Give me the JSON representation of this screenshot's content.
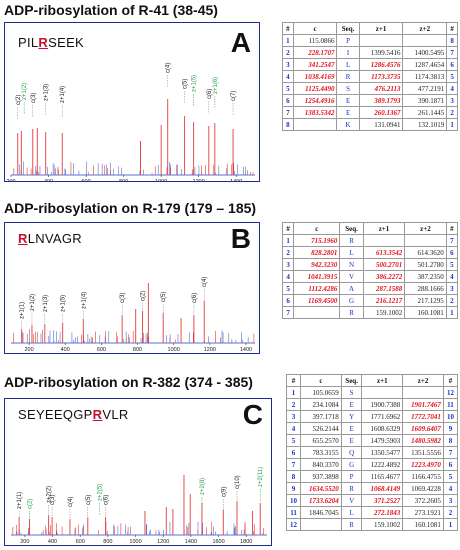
{
  "panels": [
    {
      "id": "A",
      "title": "ADP-ribosylation of R-41 (38-45)",
      "letter": "A",
      "peptide": {
        "pre": "PIL",
        "mod": "R",
        "post": "SEEK"
      },
      "x_ticks": [
        "200",
        "400",
        "600",
        "800",
        "1000",
        "1200",
        "1400"
      ],
      "xlim": [
        200,
        1500
      ],
      "peak_labels": [
        "c(2)",
        "z+1(2)",
        "c(3)",
        "z+1(3)",
        "z+1(4)",
        "c(4)",
        "c(5)",
        "z+1(5)",
        "c(6)",
        "z+1(6)",
        "c(7)"
      ],
      "table": {
        "headers": [
          "#",
          "c",
          "Seq.",
          "z+1",
          "z+2",
          "#"
        ],
        "rows": [
          {
            "n": "1",
            "c": "115.0866",
            "aa": "P",
            "z1": "",
            "z2": "",
            "m": "8",
            "hc": false,
            "hz1": false,
            "hz2": false
          },
          {
            "n": "2",
            "c": "228.1707",
            "aa": "I",
            "z1": "1399.5416",
            "z2": "1400.5495",
            "m": "7",
            "hc": true,
            "hz1": false,
            "hz2": false
          },
          {
            "n": "3",
            "c": "341.2547",
            "aa": "L",
            "z1": "1286.4576",
            "z2": "1287.4654",
            "m": "6",
            "hc": true,
            "hz1": true,
            "hz2": false
          },
          {
            "n": "4",
            "c": "1038.4169",
            "aa": "R",
            "z1": "1173.3735",
            "z2": "1174.3813",
            "m": "5",
            "hc": true,
            "hz1": true,
            "hz2": false
          },
          {
            "n": "5",
            "c": "1125.4490",
            "aa": "S",
            "z1": "476.2113",
            "z2": "477.2191",
            "m": "4",
            "hc": true,
            "hz1": true,
            "hz2": false
          },
          {
            "n": "6",
            "c": "1254.4916",
            "aa": "E",
            "z1": "389.1793",
            "z2": "390.1871",
            "m": "3",
            "hc": true,
            "hz1": true,
            "hz2": false
          },
          {
            "n": "7",
            "c": "1383.5342",
            "aa": "E",
            "z1": "260.1367",
            "z2": "261.1445",
            "m": "2",
            "hc": true,
            "hz1": true,
            "hz2": false
          },
          {
            "n": "8",
            "c": "",
            "aa": "K",
            "z1": "131.0941",
            "z2": "132.1019",
            "m": "1",
            "hc": false,
            "hz1": false,
            "hz2": false
          }
        ]
      }
    },
    {
      "id": "B",
      "title": "ADP-ribosylation on R-179 (179 – 185)",
      "letter": "B",
      "peptide": {
        "pre": "",
        "mod": "R",
        "post": "LNVAGR"
      },
      "x_ticks": [
        "200",
        "400",
        "600",
        "800",
        "1000",
        "1200",
        "1400"
      ],
      "xlim": [
        100,
        1450
      ],
      "peak_labels": [
        "z+1(1)",
        "z+1(2)",
        "z+1(3)",
        "z+1(5)",
        "z+1(4)",
        "c(3)",
        "c(2)",
        "c(5)",
        "c(6)",
        "c(4)"
      ],
      "table": {
        "headers": [
          "#",
          "c",
          "Seq.",
          "z+1",
          "z+2",
          "#"
        ],
        "rows": [
          {
            "n": "1",
            "c": "715.1960",
            "aa": "R",
            "z1": "",
            "z2": "",
            "m": "7",
            "hc": true,
            "hz1": false,
            "hz2": false
          },
          {
            "n": "2",
            "c": "828.2801",
            "aa": "L",
            "z1": "613.3542",
            "z2": "614.3620",
            "m": "6",
            "hc": true,
            "hz1": true,
            "hz2": false
          },
          {
            "n": "3",
            "c": "942.3230",
            "aa": "N",
            "z1": "500.2701",
            "z2": "501.2780",
            "m": "5",
            "hc": true,
            "hz1": true,
            "hz2": false
          },
          {
            "n": "4",
            "c": "1041.3915",
            "aa": "V",
            "z1": "386.2272",
            "z2": "387.2350",
            "m": "4",
            "hc": true,
            "hz1": true,
            "hz2": false
          },
          {
            "n": "5",
            "c": "1112.4286",
            "aa": "A",
            "z1": "287.1588",
            "z2": "288.1666",
            "m": "3",
            "hc": true,
            "hz1": true,
            "hz2": false
          },
          {
            "n": "6",
            "c": "1169.4500",
            "aa": "G",
            "z1": "216.1217",
            "z2": "217.1295",
            "m": "2",
            "hc": true,
            "hz1": true,
            "hz2": false
          },
          {
            "n": "7",
            "c": "",
            "aa": "R",
            "z1": "159.1002",
            "z2": "160.1081",
            "m": "1",
            "hc": false,
            "hz1": false,
            "hz2": false
          }
        ]
      }
    },
    {
      "id": "C",
      "title": "ADP-ribosylation on R-382 (374 - 385)",
      "letter": "C",
      "peptide": {
        "pre": "SEYEEQGP",
        "mod": "R",
        "post": "VLR"
      },
      "x_ticks": [
        "200",
        "400",
        "600",
        "800",
        "1000",
        "1200",
        "1400",
        "1600",
        "1800"
      ],
      "xlim": [
        100,
        1950
      ],
      "peak_labels": [
        "z+1(1)",
        "z+2(2)",
        "c(2)",
        "z+2(5)",
        "c(3)",
        "c(4)",
        "c(5)",
        "c(6)",
        "z+2(8)",
        "c(9)",
        "c(10)",
        "z+2(11)"
      ],
      "table": {
        "headers": [
          "#",
          "c",
          "Seq.",
          "z+1",
          "z+2",
          "#"
        ],
        "rows": [
          {
            "n": "1",
            "c": "105.0659",
            "aa": "S",
            "z1": "",
            "z2": "",
            "m": "12",
            "hc": false,
            "hz1": false,
            "hz2": false
          },
          {
            "n": "2",
            "c": "234.1084",
            "aa": "E",
            "z1": "1900.7388",
            "z2": "1901.7467",
            "m": "11",
            "hc": false,
            "hz1": false,
            "hz2": true
          },
          {
            "n": "3",
            "c": "397.1718",
            "aa": "Y",
            "z1": "1771.6962",
            "z2": "1772.7041",
            "m": "10",
            "hc": false,
            "hz1": false,
            "hz2": true
          },
          {
            "n": "4",
            "c": "526.2144",
            "aa": "E",
            "z1": "1608.6329",
            "z2": "1609.6407",
            "m": "9",
            "hc": false,
            "hz1": false,
            "hz2": true
          },
          {
            "n": "5",
            "c": "655.2570",
            "aa": "E",
            "z1": "1479.5903",
            "z2": "1480.5982",
            "m": "8",
            "hc": false,
            "hz1": false,
            "hz2": true
          },
          {
            "n": "6",
            "c": "783.3155",
            "aa": "Q",
            "z1": "1350.5477",
            "z2": "1351.5556",
            "m": "7",
            "hc": false,
            "hz1": false,
            "hz2": false
          },
          {
            "n": "7",
            "c": "840.3370",
            "aa": "G",
            "z1": "1222.4892",
            "z2": "1223.4970",
            "m": "6",
            "hc": false,
            "hz1": false,
            "hz2": true
          },
          {
            "n": "8",
            "c": "937.3898",
            "aa": "P",
            "z1": "1165.4677",
            "z2": "1166.4755",
            "m": "5",
            "hc": false,
            "hz1": false,
            "hz2": false
          },
          {
            "n": "9",
            "c": "1634.5520",
            "aa": "R",
            "z1": "1068.4149",
            "z2": "1069.4228",
            "m": "4",
            "hc": true,
            "hz1": true,
            "hz2": false
          },
          {
            "n": "10",
            "c": "1733.6204",
            "aa": "V",
            "z1": "371.2527",
            "z2": "372.2605",
            "m": "3",
            "hc": true,
            "hz1": true,
            "hz2": false
          },
          {
            "n": "11",
            "c": "1846.7045",
            "aa": "L",
            "z1": "272.1843",
            "z2": "273.1921",
            "m": "2",
            "hc": false,
            "hz1": true,
            "hz2": false
          },
          {
            "n": "12",
            "c": "",
            "aa": "R",
            "z1": "159.1002",
            "z2": "160.1081",
            "m": "1",
            "hc": false,
            "hz1": false,
            "hz2": false
          }
        ]
      }
    }
  ]
}
